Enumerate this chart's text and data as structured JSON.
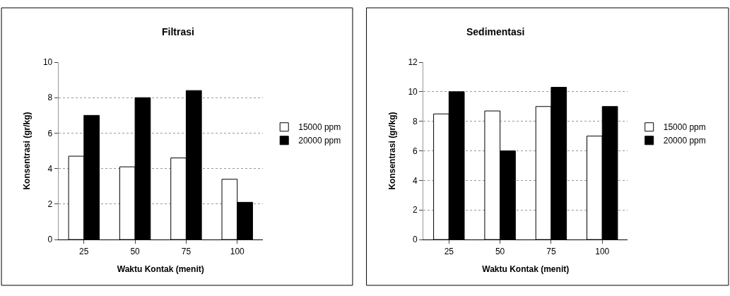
{
  "chart_data": [
    {
      "type": "bar",
      "title": "Filtrasi",
      "xlabel": "Waktu Kontak (menit)",
      "ylabel": "Konsentrasi (gr/kg)",
      "categories": [
        "25",
        "50",
        "75",
        "100"
      ],
      "series": [
        {
          "name": "15000 ppm",
          "color": "#ffffff",
          "values": [
            4.7,
            4.1,
            4.6,
            3.4
          ]
        },
        {
          "name": "20000 ppm",
          "color": "#000000",
          "values": [
            7.0,
            8.0,
            8.4,
            2.1
          ]
        }
      ],
      "ylim": [
        0,
        10
      ],
      "yticks": [
        0,
        2,
        4,
        6,
        8,
        10
      ],
      "grid": "y",
      "legend": "right"
    },
    {
      "type": "bar",
      "title": "Sedimentasi",
      "xlabel": "Waktu Kontak (menit)",
      "ylabel": "Konsentrasi (gr/kg)",
      "categories": [
        "25",
        "50",
        "75",
        "100"
      ],
      "series": [
        {
          "name": "15000 ppm",
          "color": "#ffffff",
          "values": [
            8.5,
            8.7,
            9.0,
            7.0
          ]
        },
        {
          "name": "20000 ppm",
          "color": "#000000",
          "values": [
            10.0,
            6.0,
            10.3,
            9.0
          ]
        }
      ],
      "ylim": [
        0,
        12
      ],
      "yticks": [
        0,
        2,
        4,
        6,
        8,
        10,
        12
      ],
      "grid": "y",
      "legend": "right"
    }
  ]
}
